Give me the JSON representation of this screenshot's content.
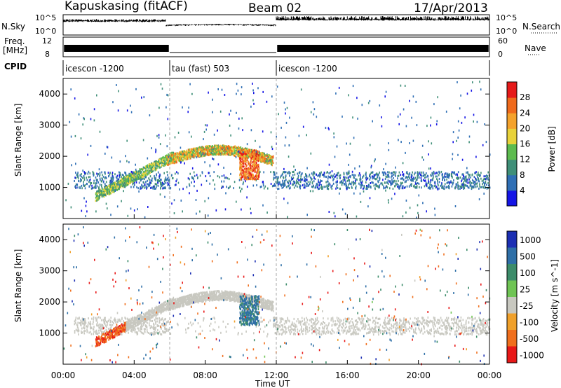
{
  "header": {
    "station": "Kapuskasing (fitACF)",
    "beam": "Beam 02",
    "date": "17/Apr/2013"
  },
  "strip_labels": {
    "nsky": "N.Sky",
    "nsky_ticks": [
      "10^5",
      "10^0"
    ],
    "nsearch": "N.Search",
    "nsearch_ticks": [
      "10^5",
      "10^0"
    ],
    "freq": "Freq.",
    "freq_unit": "[MHz]",
    "freq_ticks": [
      "12",
      "8"
    ],
    "nave": "Nave",
    "nave_ticks": [
      "60",
      "0"
    ],
    "cpid": "CPID"
  },
  "cpid_segments": [
    {
      "label": "icescon -1200",
      "start": "00:00",
      "end": "06:00"
    },
    {
      "label": "tau (fast) 503",
      "start": "06:00",
      "end": "12:00"
    },
    {
      "label": "icescon -1200",
      "start": "12:00",
      "end": "24:00"
    }
  ],
  "chart_data": [
    {
      "type": "heatmap",
      "name": "Power",
      "xlabel": "Time UT",
      "ylabel": "Slant Range [km]",
      "x_ticks": [
        "00:00",
        "04:00",
        "08:00",
        "12:00",
        "16:00",
        "20:00",
        "00:00"
      ],
      "x_range_hours": [
        0,
        24
      ],
      "y_ticks": [
        "1000",
        "2000",
        "3000",
        "4000"
      ],
      "ylim": [
        0,
        4500
      ],
      "colorbar_label": "Power [dB]",
      "colorbar_ticks": [
        "4",
        "8",
        "12",
        "16",
        "20",
        "24",
        "28"
      ],
      "colorbar_range": [
        0,
        30
      ],
      "colorbar_colors": [
        "#1515e6",
        "#2f6fb5",
        "#3f8f78",
        "#5dbb4f",
        "#e8d23a",
        "#f4a22c",
        "#ef6a1c",
        "#e61a1a"
      ],
      "features": [
        {
          "desc": "main scatter band",
          "t_hours": [
            0.8,
            24
          ],
          "range_km": [
            900,
            1500
          ],
          "power_db": 6
        },
        {
          "desc": "arc",
          "t_hours": [
            2.0,
            6.5
          ],
          "range_km": [
            700,
            1900
          ],
          "power_db": 14
        },
        {
          "desc": "dome",
          "t_hours": [
            6.0,
            11.7
          ],
          "range_km": [
            1800,
            2400
          ],
          "power_db": 18
        },
        {
          "desc": "patch",
          "t_hours": [
            9.9,
            11.0
          ],
          "range_km": [
            1200,
            2200
          ],
          "power_db": 24
        }
      ]
    },
    {
      "type": "heatmap",
      "name": "Velocity",
      "xlabel": "Time UT",
      "ylabel": "Slant Range [km]",
      "x_ticks": [
        "00:00",
        "04:00",
        "08:00",
        "12:00",
        "16:00",
        "20:00",
        "00:00"
      ],
      "x_range_hours": [
        0,
        24
      ],
      "y_ticks": [
        "1000",
        "2000",
        "3000",
        "4000"
      ],
      "ylim": [
        0,
        4500
      ],
      "colorbar_label": "Velocity [m s^-1]",
      "colorbar_ticks": [
        "1000",
        "500",
        "100",
        "25",
        "-25",
        "-100",
        "-500",
        "-1000"
      ],
      "colorbar_colors": [
        "#1c2fb3",
        "#2e6fa7",
        "#3c8c6a",
        "#6fc454",
        "#c8c8c0",
        "#f0a02a",
        "#f06f1d",
        "#e81818"
      ],
      "features": [
        {
          "desc": "ground scatter band",
          "t_hours": [
            0.5,
            24
          ],
          "range_km": [
            950,
            1500
          ],
          "velocity": 0
        },
        {
          "desc": "negative velocity blob",
          "t_hours": [
            1.5,
            3.5
          ],
          "range_km": [
            800,
            1500
          ],
          "velocity": -500
        },
        {
          "desc": "dome (low velocity)",
          "t_hours": [
            6.0,
            11.7
          ],
          "range_km": [
            1800,
            2400
          ],
          "velocity": 0
        },
        {
          "desc": "positive velocity patch",
          "t_hours": [
            9.9,
            11.0
          ],
          "range_km": [
            1300,
            2200
          ],
          "velocity": 300
        }
      ]
    }
  ]
}
